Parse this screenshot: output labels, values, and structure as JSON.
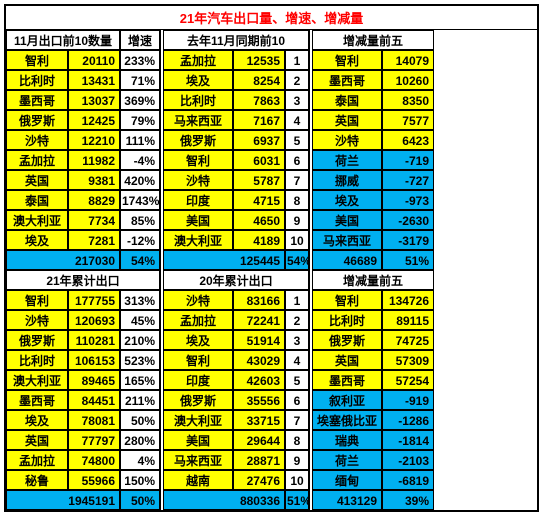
{
  "title": "21年汽车出口量、增速、增减量",
  "h": {
    "h1": "11月出口前10数量",
    "h2": "增速",
    "h3": "去年11月同期前10",
    "h4": "增减量前五",
    "s1": "21年累计出口",
    "s2": "20年累计出口",
    "s3": "增减量前五"
  },
  "t1": [
    [
      "智利",
      "20110",
      "233%",
      "孟加拉",
      "12535",
      "1",
      "智利",
      "14079",
      "y"
    ],
    [
      "比利时",
      "13431",
      "71%",
      "埃及",
      "8254",
      "2",
      "墨西哥",
      "10260",
      "y"
    ],
    [
      "墨西哥",
      "13037",
      "369%",
      "比利时",
      "7863",
      "3",
      "泰国",
      "8350",
      "y"
    ],
    [
      "俄罗斯",
      "12425",
      "79%",
      "马来西亚",
      "7167",
      "4",
      "英国",
      "7577",
      "y"
    ],
    [
      "沙特",
      "12210",
      "111%",
      "俄罗斯",
      "6937",
      "5",
      "沙特",
      "6423",
      "y"
    ],
    [
      "孟加拉",
      "11982",
      "-4%",
      "智利",
      "6031",
      "6",
      "荷兰",
      "-719",
      "b"
    ],
    [
      "英国",
      "9381",
      "420%",
      "沙特",
      "5787",
      "7",
      "挪威",
      "-727",
      "b"
    ],
    [
      "泰国",
      "8829",
      "1743%",
      "印度",
      "4715",
      "8",
      "埃及",
      "-973",
      "b"
    ],
    [
      "澳大利亚",
      "7734",
      "85%",
      "美国",
      "4650",
      "9",
      "美国",
      "-2630",
      "b"
    ],
    [
      "埃及",
      "7281",
      "-12%",
      "澳大利亚",
      "4189",
      "10",
      "马来西亚",
      "-3179",
      "b"
    ]
  ],
  "t1tot": [
    "217030",
    "54%",
    "",
    "125445",
    "54%",
    "",
    "46689",
    "51%"
  ],
  "t2": [
    [
      "智利",
      "177755",
      "313%",
      "沙特",
      "83166",
      "1",
      "智利",
      "134726",
      "y"
    ],
    [
      "沙特",
      "120693",
      "45%",
      "孟加拉",
      "72241",
      "2",
      "比利时",
      "89115",
      "y"
    ],
    [
      "俄罗斯",
      "110281",
      "210%",
      "埃及",
      "51914",
      "3",
      "俄罗斯",
      "74725",
      "y"
    ],
    [
      "比利时",
      "106153",
      "523%",
      "智利",
      "43029",
      "4",
      "英国",
      "57309",
      "y"
    ],
    [
      "澳大利亚",
      "89465",
      "165%",
      "印度",
      "42603",
      "5",
      "墨西哥",
      "57254",
      "y"
    ],
    [
      "墨西哥",
      "84451",
      "211%",
      "俄罗斯",
      "35556",
      "6",
      "叙利亚",
      "-919",
      "b"
    ],
    [
      "埃及",
      "78081",
      "50%",
      "澳大利亚",
      "33715",
      "7",
      "埃塞俄比亚",
      "-1286",
      "b"
    ],
    [
      "英国",
      "77797",
      "280%",
      "美国",
      "29644",
      "8",
      "瑞典",
      "-1814",
      "b"
    ],
    [
      "孟加拉",
      "74800",
      "4%",
      "马来西亚",
      "28871",
      "9",
      "荷兰",
      "-2103",
      "b"
    ],
    [
      "秘鲁",
      "55966",
      "150%",
      "越南",
      "27476",
      "10",
      "缅甸",
      "-6819",
      "b"
    ]
  ],
  "t2tot": [
    "1945191",
    "50%",
    "",
    "880336",
    "51%",
    "",
    "413129",
    "39%"
  ]
}
